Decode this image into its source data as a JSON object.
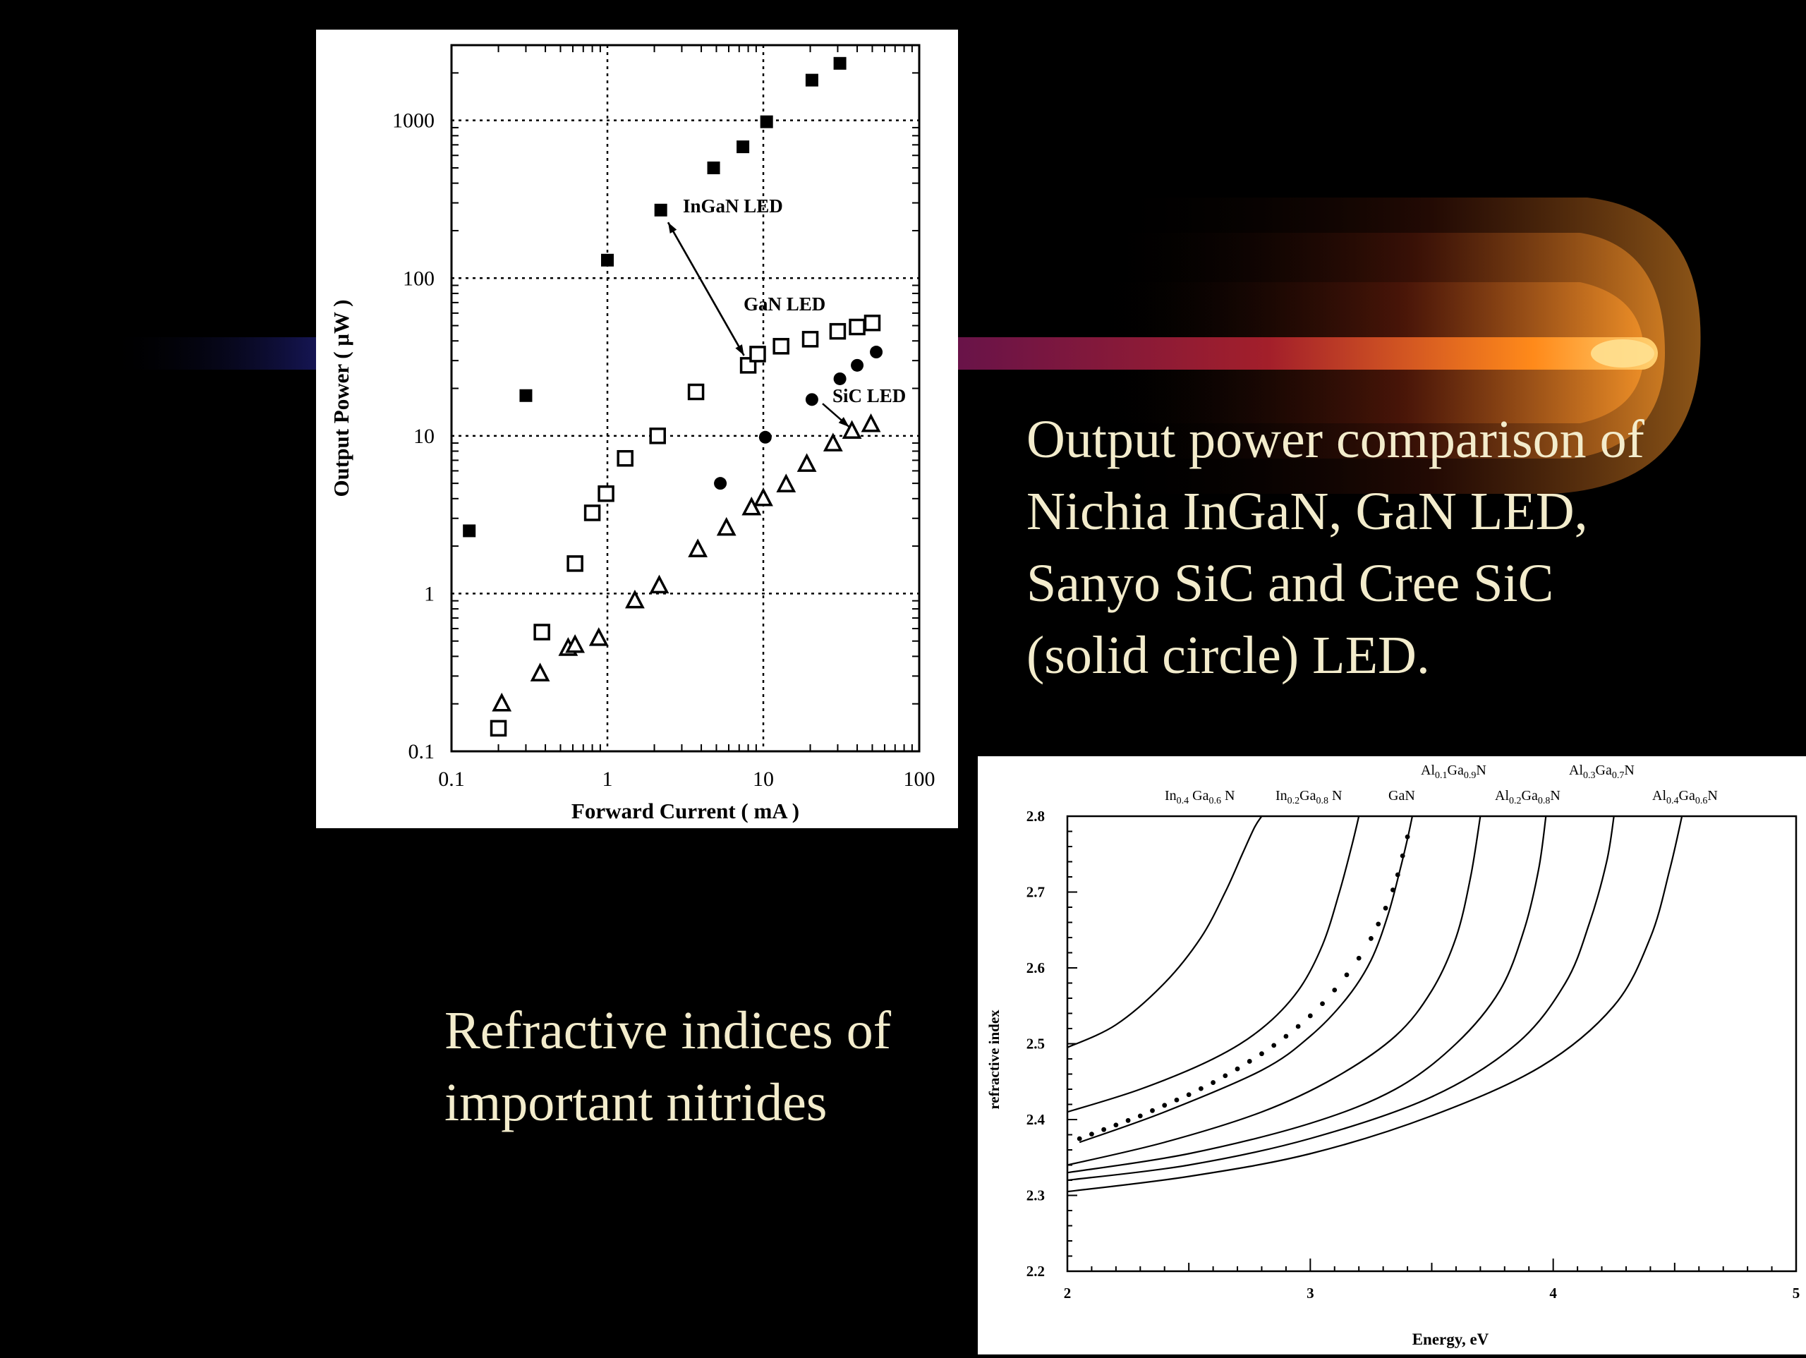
{
  "slide": {
    "caption_top": "Output power comparison of\nNichia InGaN, GaN LED,\nSanyo SiC and Cree SiC\n(solid circle) LED.",
    "caption_bottom": "Refractive indices of\nimportant nitrides",
    "colors": {
      "background": "#000000",
      "caption": "#f3eccc",
      "streak_core": "#ffb030",
      "streak_tail": "#1a1a66"
    }
  },
  "chart_data": [
    {
      "type": "scatter",
      "title": "",
      "xlabel": "Forward Current ( mA )",
      "ylabel": "Output Power ( μW )",
      "xscale": "log",
      "yscale": "log",
      "xlim": [
        0.1,
        100
      ],
      "ylim": [
        0.1,
        3000
      ],
      "x_ticks": [
        0.1,
        1,
        10,
        100
      ],
      "x_tick_labels": [
        "0.1",
        "1",
        "10",
        "100"
      ],
      "y_ticks": [
        0.1,
        1,
        10,
        100,
        1000
      ],
      "y_tick_labels": [
        "0.1",
        "1",
        "10",
        "100",
        "1000"
      ],
      "grid": true,
      "series": [
        {
          "name": "InGaN LED",
          "marker": "filled-square",
          "x": [
            0.13,
            0.3,
            1.0,
            2.2,
            4.8,
            7.4,
            10.5,
            20.5,
            31
          ],
          "y": [
            2.5,
            18,
            130,
            270,
            500,
            680,
            980,
            1800,
            2300
          ]
        },
        {
          "name": "GaN LED",
          "marker": "open-square",
          "x": [
            0.2,
            0.38,
            0.62,
            0.8,
            0.98,
            1.3,
            2.1,
            3.7,
            8.0,
            9.2,
            13,
            20,
            30,
            40,
            50
          ],
          "y": [
            0.14,
            0.57,
            1.55,
            3.25,
            4.3,
            7.2,
            10,
            19,
            28,
            33,
            37,
            41,
            46,
            49,
            52
          ]
        },
        {
          "name": "SiC LED",
          "marker": "open-triangle",
          "x": [
            0.21,
            0.37,
            0.56,
            0.62,
            0.88,
            1.5,
            2.15,
            3.8,
            5.8,
            8.4,
            10,
            14,
            19,
            28,
            37,
            49
          ],
          "y": [
            0.2,
            0.31,
            0.45,
            0.47,
            0.52,
            0.9,
            1.12,
            1.9,
            2.6,
            3.5,
            4.0,
            4.9,
            6.6,
            8.9,
            10.7,
            11.8
          ]
        },
        {
          "name": "",
          "marker": "filled-circle",
          "x": [
            5.3,
            10.3,
            20.5,
            31,
            40,
            53
          ],
          "y": [
            5,
            9.8,
            17,
            23,
            28,
            34
          ]
        }
      ],
      "annotations": [
        {
          "text": "InGaN LED",
          "arrow_to": [
            8.0,
            28
          ],
          "arrow_from": [
            2.4,
            240
          ]
        },
        {
          "text": "GaN LED"
        },
        {
          "text": "SiC LED",
          "arrow_to": [
            37,
            10.5
          ],
          "arrow_from": [
            24,
            16
          ]
        }
      ]
    },
    {
      "type": "line",
      "title": "",
      "xlabel": "Energy, eV",
      "ylabel": "refractive index",
      "xlim": [
        2,
        5
      ],
      "ylim": [
        2.2,
        2.8
      ],
      "x_ticks": [
        2,
        3,
        4,
        5
      ],
      "x_tick_labels": [
        "2",
        "3",
        "4",
        "5"
      ],
      "y_ticks": [
        2.2,
        2.3,
        2.4,
        2.5,
        2.6,
        2.7,
        2.8
      ],
      "y_tick_labels": [
        "2.2",
        "2.3",
        "2.4",
        "2.5",
        "2.6",
        "2.7",
        "2.8"
      ],
      "grid": false,
      "series": [
        {
          "name": "In0.4 Ga0.6 N",
          "label_parts": [
            [
              "In",
              ""
            ],
            [
              "0.4",
              "sub"
            ],
            [
              " Ga",
              ""
            ],
            [
              "0.6",
              "sub"
            ],
            [
              " N",
              ""
            ]
          ],
          "x": [
            2.0,
            2.2,
            2.4,
            2.55,
            2.65,
            2.72,
            2.77,
            2.8
          ],
          "y": [
            2.495,
            2.525,
            2.58,
            2.64,
            2.7,
            2.75,
            2.785,
            2.8
          ]
        },
        {
          "name": "In0.2Ga0.8 N",
          "label_parts": [
            [
              "In",
              ""
            ],
            [
              "0.2",
              "sub"
            ],
            [
              "Ga",
              ""
            ],
            [
              "0.8",
              "sub"
            ],
            [
              " N",
              ""
            ]
          ],
          "x": [
            2.0,
            2.3,
            2.6,
            2.8,
            2.95,
            3.05,
            3.12,
            3.17,
            3.2
          ],
          "y": [
            2.41,
            2.44,
            2.48,
            2.52,
            2.57,
            2.63,
            2.7,
            2.76,
            2.8
          ]
        },
        {
          "name": "GaN",
          "label_parts": [
            [
              "GaN",
              ""
            ]
          ],
          "x": [
            2.05,
            2.4,
            2.8,
            3.0,
            3.15,
            3.25,
            3.32,
            3.37,
            3.4,
            3.42
          ],
          "y": [
            2.37,
            2.41,
            2.465,
            2.51,
            2.56,
            2.61,
            2.67,
            2.73,
            2.77,
            2.8
          ]
        },
        {
          "name": "Al0.1Ga0.9N",
          "label_parts": [
            [
              "Al",
              ""
            ],
            [
              "0.1",
              "sub"
            ],
            [
              "Ga",
              ""
            ],
            [
              "0.9",
              "sub"
            ],
            [
              "N",
              ""
            ]
          ],
          "x": [
            2.0,
            2.4,
            2.8,
            3.1,
            3.35,
            3.5,
            3.6,
            3.66,
            3.7
          ],
          "y": [
            2.34,
            2.37,
            2.41,
            2.455,
            2.51,
            2.57,
            2.64,
            2.72,
            2.8
          ]
        },
        {
          "name": "Al0.2Ga0.8N",
          "label_parts": [
            [
              "Al",
              ""
            ],
            [
              "0.2",
              "sub"
            ],
            [
              "Ga",
              ""
            ],
            [
              "0.8",
              "sub"
            ],
            [
              "N",
              ""
            ]
          ],
          "x": [
            2.0,
            2.5,
            3.0,
            3.35,
            3.6,
            3.78,
            3.88,
            3.94,
            3.97
          ],
          "y": [
            2.33,
            2.355,
            2.395,
            2.44,
            2.5,
            2.57,
            2.65,
            2.73,
            2.8
          ]
        },
        {
          "name": "Al0.3Ga0.7N",
          "label_parts": [
            [
              "Al",
              ""
            ],
            [
              "0.3",
              "sub"
            ],
            [
              "Ga",
              ""
            ],
            [
              "0.7",
              "sub"
            ],
            [
              "N",
              ""
            ]
          ],
          "x": [
            2.0,
            2.5,
            3.0,
            3.5,
            3.85,
            4.05,
            4.15,
            4.22,
            4.25
          ],
          "y": [
            2.32,
            2.34,
            2.375,
            2.43,
            2.5,
            2.58,
            2.66,
            2.74,
            2.8
          ]
        },
        {
          "name": "Al0.4Ga0.6N",
          "label_parts": [
            [
              "Al",
              ""
            ],
            [
              "0.4",
              "sub"
            ],
            [
              "Ga",
              ""
            ],
            [
              "0.6",
              "sub"
            ],
            [
              "N",
              ""
            ]
          ],
          "x": [
            2.0,
            2.5,
            3.0,
            3.5,
            3.95,
            4.25,
            4.4,
            4.48,
            4.53
          ],
          "y": [
            2.305,
            2.325,
            2.355,
            2.405,
            2.47,
            2.55,
            2.64,
            2.73,
            2.8
          ]
        }
      ],
      "measured_points": {
        "name": "",
        "x": [
          2.05,
          2.1,
          2.15,
          2.2,
          2.25,
          2.3,
          2.35,
          2.4,
          2.45,
          2.5,
          2.55,
          2.6,
          2.65,
          2.7,
          2.75,
          2.8,
          2.85,
          2.9,
          2.95,
          3.0,
          3.05,
          3.1,
          3.15,
          3.2,
          3.25,
          3.28,
          3.31,
          3.34,
          3.36,
          3.38,
          3.4
        ],
        "y": [
          2.372,
          2.378,
          2.384,
          2.39,
          2.396,
          2.402,
          2.409,
          2.416,
          2.423,
          2.43,
          2.438,
          2.446,
          2.455,
          2.464,
          2.474,
          2.484,
          2.495,
          2.507,
          2.52,
          2.534,
          2.55,
          2.568,
          2.588,
          2.61,
          2.636,
          2.655,
          2.676,
          2.7,
          2.72,
          2.745,
          2.77
        ]
      }
    }
  ]
}
